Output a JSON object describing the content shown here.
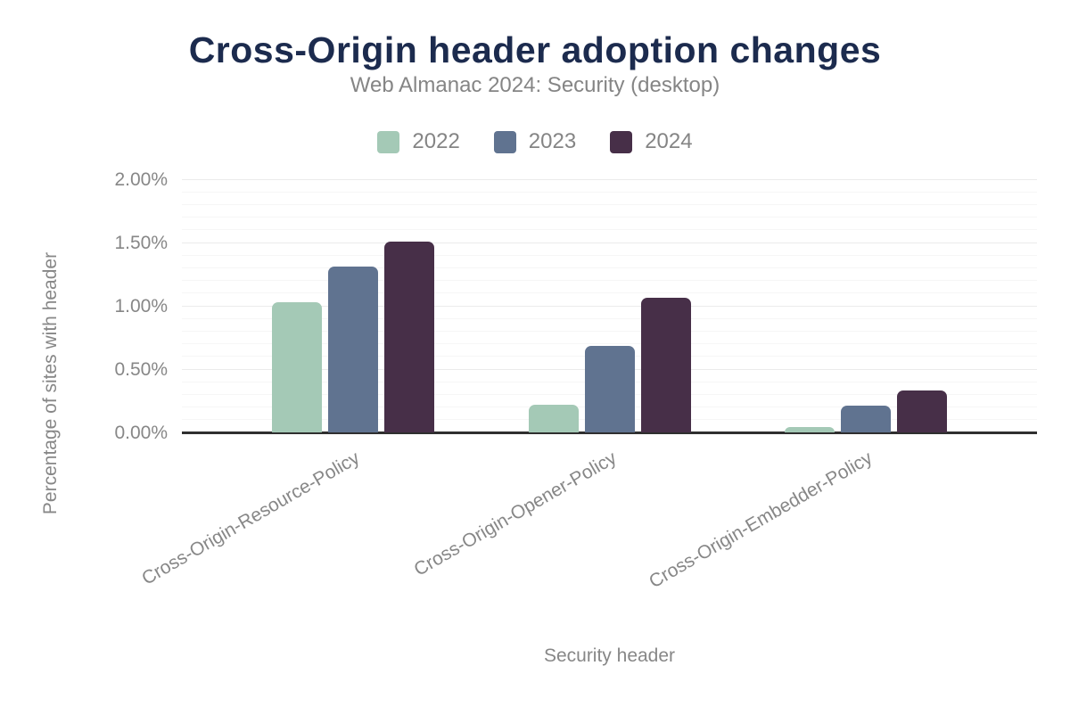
{
  "header": {
    "title": "Cross-Origin header adoption changes",
    "subtitle": "Web Almanac 2024: Security (desktop)"
  },
  "chart_data": {
    "type": "bar",
    "title": "Cross-Origin header adoption changes",
    "subtitle": "Web Almanac 2024: Security (desktop)",
    "categories": [
      "Cross-Origin-Resource-Policy",
      "Cross-Origin-Opener-Policy",
      "Cross-Origin-Embedder-Policy"
    ],
    "series": [
      {
        "name": "2022",
        "color": "#a4c9b6",
        "values": [
          1.03,
          0.22,
          0.04
        ]
      },
      {
        "name": "2023",
        "color": "#607390",
        "values": [
          1.31,
          0.68,
          0.21
        ]
      },
      {
        "name": "2024",
        "color": "#472f48",
        "values": [
          1.51,
          1.06,
          0.33
        ]
      }
    ],
    "xlabel": "Security header",
    "ylabel": "Percentage of sites with header",
    "ylim": [
      0,
      2.0
    ],
    "y_major_step": 0.5,
    "y_minor_step": 0.1,
    "y_tick_labels": [
      "0.00%",
      "0.50%",
      "1.00%",
      "1.50%",
      "2.00%"
    ],
    "y_tick_format": "percent2",
    "legend_position": "top",
    "grid": true
  },
  "colors": {
    "title_text": "#1c2b4e",
    "muted_text": "#858585",
    "axis_text": "#878787",
    "gridline_major": "#ebebeb",
    "gridline_minor": "#f6f6f6",
    "axis_line": "#2f2f2f",
    "background": "#ffffff"
  }
}
